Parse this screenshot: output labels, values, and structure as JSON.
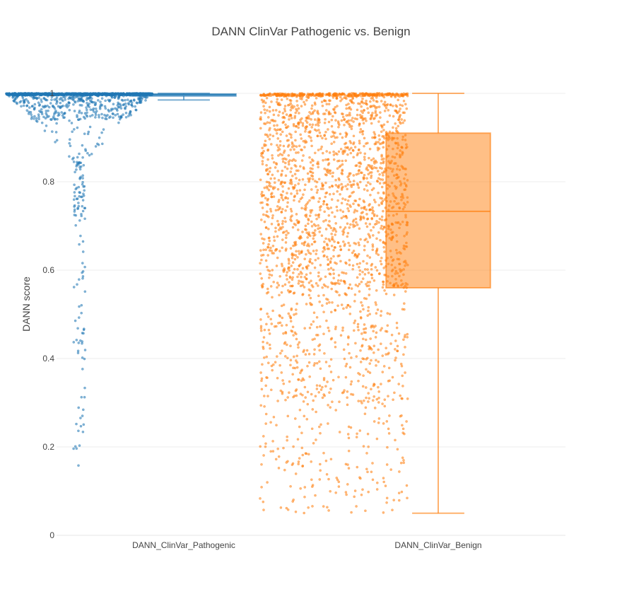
{
  "chart_data": {
    "type": "box",
    "title": "DANN ClinVar Pathogenic vs. Benign",
    "ylabel": "DANN score",
    "xlabel": "",
    "ylim": [
      0,
      1
    ],
    "yticks": [
      0,
      0.2,
      0.4,
      0.6,
      0.8,
      1
    ],
    "ytick_labels": [
      "0",
      "0.2",
      "0.4",
      "0.6",
      "0.8",
      "1"
    ],
    "grid": true,
    "legend": "none",
    "categories": [
      "DANN_ClinVar_Pathogenic",
      "DANN_ClinVar_Benign"
    ],
    "series": [
      {
        "category": "DANN_ClinVar_Pathogenic",
        "color": "#1f77b4",
        "boxpoints": "all",
        "box": {
          "min": 0.985,
          "q1": 0.994,
          "median": 0.997,
          "q3": 0.9985,
          "max": 1.0,
          "lower_fence": 0.985,
          "upper_fence": 1.0
        },
        "points_range": [
          0.14,
          1.0
        ]
      },
      {
        "category": "DANN_ClinVar_Benign",
        "color": "#ff7f0e",
        "boxpoints": "all",
        "box": {
          "min": 0.05,
          "q1": 0.56,
          "median": 0.733,
          "q3": 0.91,
          "max": 1.0,
          "lower_fence": 0.05,
          "upper_fence": 1.0
        },
        "points_range": [
          0.05,
          1.0
        ]
      }
    ]
  }
}
